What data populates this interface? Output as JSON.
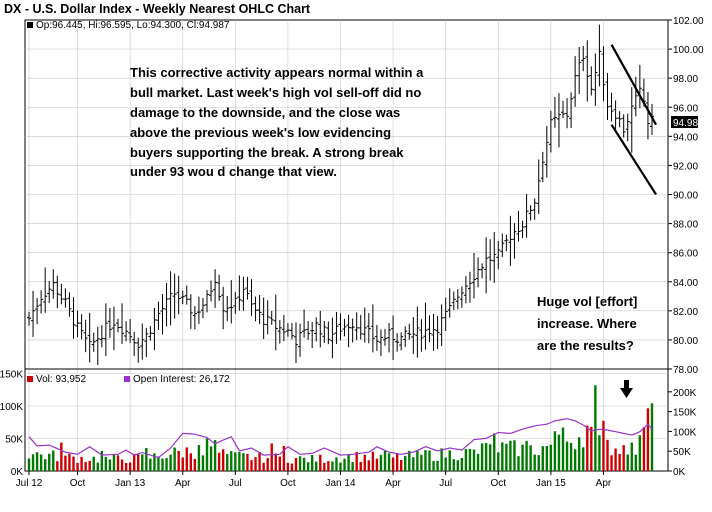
{
  "title": "DX - U.S. Dollar Index - Weekly Nearest OHLC Chart",
  "legend_ohlc": "Op:96.445, Hi:96.595, Lo:94.300, Cl:94.987",
  "last_value": "94.987",
  "annotation_main": [
    "This corrective activity appears normal within a",
    "bull market.  Last week's high vol sell-off did no",
    "damage to the downside, and the close was",
    "above the previous week's low evidencing",
    "buyers supporting the break.  A strong break",
    "under 93 wou d change that view."
  ],
  "annotation_vol": [
    "Huge vol [effort]",
    "increase.  Where",
    "are the results?"
  ],
  "volume_legend": {
    "vol": "Vol: 93,952",
    "oi": "Open Interest: 26,172"
  },
  "colors": {
    "up": "#007a00",
    "down": "#cc0000",
    "bar": "#000000",
    "oi": "#9933cc",
    "frame": "#000000",
    "grid": "#c8c8c8"
  },
  "chart_data": [
    {
      "type": "ohlc",
      "y_ticks": [
        "78.00",
        "80.00",
        "82.00",
        "84.00",
        "86.00",
        "88.00",
        "90.00",
        "92.00",
        "94.00",
        "96.00",
        "98.00",
        "100.00",
        "102.00"
      ],
      "ylim": [
        78,
        102
      ],
      "x_ticks": [
        "Jul 12",
        "Oct",
        "Jan 13",
        "Apr",
        "Jul",
        "Oct",
        "Jan 14",
        "Apr",
        "Jul",
        "Oct",
        "Jan 15",
        "Apr"
      ],
      "x_tick_weeks": [
        0,
        12,
        25,
        38,
        51,
        64,
        77,
        90,
        103,
        116,
        129,
        142
      ],
      "total_weeks": 155,
      "anchors": [
        [
          0,
          81.5
        ],
        [
          3,
          83.0
        ],
        [
          6,
          83.8
        ],
        [
          9,
          82.5
        ],
        [
          12,
          80.8
        ],
        [
          15,
          79.5
        ],
        [
          18,
          80.5
        ],
        [
          21,
          81.3
        ],
        [
          24,
          80.6
        ],
        [
          27,
          79.8
        ],
        [
          29,
          80.3
        ],
        [
          32,
          81.8
        ],
        [
          36,
          83.2
        ],
        [
          39,
          82.4
        ],
        [
          41,
          81.8
        ],
        [
          44,
          82.8
        ],
        [
          46,
          84.3
        ],
        [
          48,
          82.3
        ],
        [
          51,
          82.5
        ],
        [
          53,
          83.6
        ],
        [
          55,
          82.3
        ],
        [
          58,
          81.4
        ],
        [
          61,
          80.9
        ],
        [
          64,
          80.6
        ],
        [
          66,
          80.0
        ],
        [
          68,
          80.4
        ],
        [
          71,
          81.0
        ],
        [
          74,
          80.3
        ],
        [
          77,
          80.8
        ],
        [
          80,
          81.2
        ],
        [
          83,
          80.6
        ],
        [
          86,
          80.0
        ],
        [
          89,
          80.3
        ],
        [
          92,
          80.1
        ],
        [
          95,
          80.4
        ],
        [
          98,
          80.6
        ],
        [
          101,
          80.9
        ],
        [
          104,
          82.1
        ],
        [
          107,
          83.5
        ],
        [
          110,
          84.5
        ],
        [
          113,
          85.5
        ],
        [
          116,
          85.8
        ],
        [
          119,
          87.2
        ],
        [
          122,
          88.0
        ],
        [
          125,
          89.6
        ],
        [
          127,
          92.5
        ],
        [
          129,
          94.8
        ],
        [
          131,
          95.3
        ],
        [
          133,
          95.5
        ],
        [
          135,
          98.0
        ],
        [
          137,
          99.6
        ],
        [
          139,
          97.3
        ],
        [
          141,
          99.5
        ],
        [
          143,
          96.2
        ],
        [
          145,
          95.6
        ],
        [
          147,
          94.5
        ],
        [
          149,
          95.9
        ],
        [
          151,
          97.0
        ],
        [
          152,
          96.4
        ],
        [
          153,
          95.0
        ]
      ],
      "channel_lines": [
        [
          [
            144,
            100.3
          ],
          [
            155,
            94.8
          ]
        ],
        [
          [
            144,
            94.8
          ],
          [
            155,
            90.0
          ]
        ]
      ],
      "title": "DX - U.S. Dollar Index - Weekly Nearest OHLC Chart"
    },
    {
      "type": "bar",
      "name": "Vol",
      "left_ticks": [
        "0K",
        "50K",
        "100K",
        "150K"
      ],
      "right_ticks": [
        "0K",
        "50K",
        "100K",
        "150K",
        "200K"
      ],
      "ylim": [
        0,
        220
      ],
      "vol_anchors": [
        [
          0,
          45
        ],
        [
          10,
          35
        ],
        [
          20,
          30
        ],
        [
          30,
          35
        ],
        [
          35,
          45
        ],
        [
          40,
          52
        ],
        [
          47,
          48
        ],
        [
          50,
          38
        ],
        [
          60,
          34
        ],
        [
          70,
          30
        ],
        [
          80,
          38
        ],
        [
          90,
          34
        ],
        [
          100,
          42
        ],
        [
          110,
          48
        ],
        [
          115,
          60
        ],
        [
          120,
          58
        ],
        [
          125,
          55
        ],
        [
          130,
          68
        ],
        [
          135,
          85
        ],
        [
          138,
          110
        ],
        [
          140,
          72
        ],
        [
          145,
          60
        ],
        [
          150,
          65
        ],
        [
          153,
          90
        ]
      ],
      "vol_spikes": [
        [
          8,
          68
        ],
        [
          18,
          48
        ],
        [
          29,
          55
        ],
        [
          42,
          62
        ],
        [
          44,
          78
        ],
        [
          46,
          74
        ],
        [
          60,
          66
        ],
        [
          63,
          60
        ],
        [
          88,
          48
        ],
        [
          98,
          50
        ],
        [
          112,
          66
        ],
        [
          115,
          90
        ],
        [
          123,
          72
        ],
        [
          130,
          95
        ],
        [
          132,
          104
        ],
        [
          140,
          205
        ],
        [
          142,
          120
        ],
        [
          149,
          68
        ],
        [
          152,
          105
        ],
        [
          153,
          150
        ],
        [
          154,
          162
        ]
      ],
      "oi_anchors": [
        [
          0,
          82
        ],
        [
          2,
          60
        ],
        [
          5,
          62
        ],
        [
          9,
          45
        ],
        [
          12,
          40
        ],
        [
          15,
          58
        ],
        [
          18,
          38
        ],
        [
          22,
          40
        ],
        [
          24,
          50
        ],
        [
          26,
          38
        ],
        [
          28,
          44
        ],
        [
          32,
          32
        ],
        [
          35,
          55
        ],
        [
          38,
          90
        ],
        [
          41,
          88
        ],
        [
          44,
          80
        ],
        [
          46,
          65
        ],
        [
          48,
          74
        ],
        [
          50,
          82
        ],
        [
          52,
          48
        ],
        [
          55,
          55
        ],
        [
          58,
          38
        ],
        [
          62,
          40
        ],
        [
          64,
          58
        ],
        [
          67,
          40
        ],
        [
          70,
          42
        ],
        [
          73,
          55
        ],
        [
          77,
          38
        ],
        [
          80,
          40
        ],
        [
          84,
          45
        ],
        [
          86,
          58
        ],
        [
          89,
          45
        ],
        [
          92,
          40
        ],
        [
          95,
          45
        ],
        [
          98,
          58
        ],
        [
          101,
          48
        ],
        [
          104,
          55
        ],
        [
          107,
          50
        ],
        [
          110,
          75
        ],
        [
          113,
          78
        ],
        [
          116,
          92
        ],
        [
          119,
          90
        ],
        [
          122,
          100
        ],
        [
          125,
          108
        ],
        [
          128,
          112
        ],
        [
          130,
          120
        ],
        [
          133,
          125
        ],
        [
          135,
          120
        ],
        [
          137,
          110
        ],
        [
          139,
          96
        ],
        [
          141,
          100
        ],
        [
          143,
          98
        ],
        [
          146,
          92
        ],
        [
          149,
          86
        ],
        [
          151,
          94
        ],
        [
          153,
          112
        ],
        [
          154,
          100
        ]
      ],
      "open_interest_name": "Open Interest"
    }
  ]
}
